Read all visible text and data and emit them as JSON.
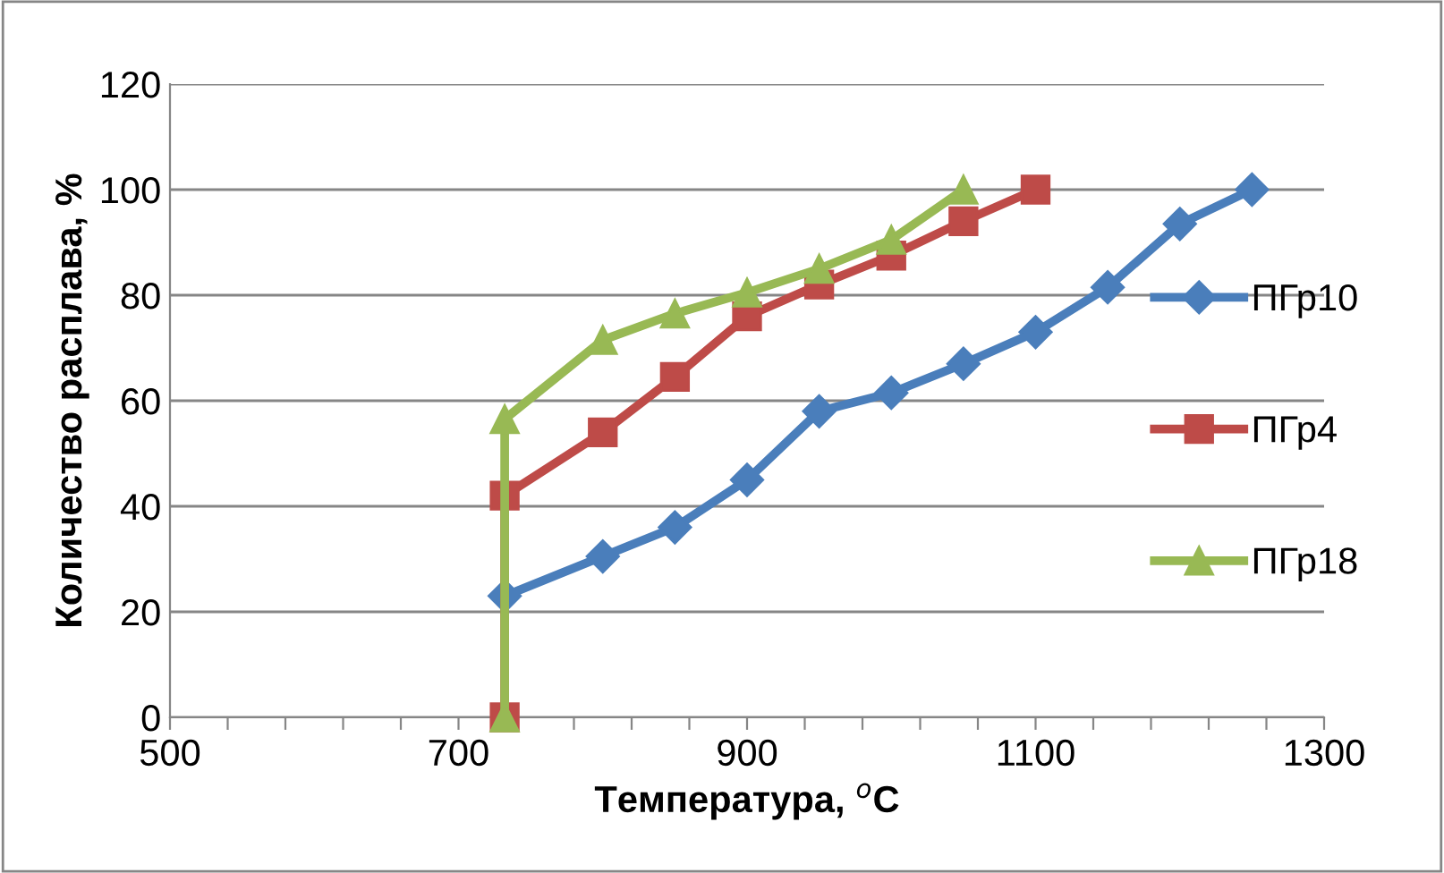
{
  "chart_data": {
    "type": "line",
    "xlabel": "Температура, $^{o}$C",
    "ylabel": "Количество расплава, %",
    "xlim": [
      500,
      1300
    ],
    "ylim": [
      0,
      120
    ],
    "xticks": [
      500,
      {
        "value": 540,
        "label": null
      },
      {
        "value": 580,
        "label": null
      },
      {
        "value": 620,
        "label": null
      },
      {
        "value": 660,
        "label": null
      },
      700,
      {
        "value": 740,
        "label": null
      },
      {
        "value": 780,
        "label": null
      },
      {
        "value": 820,
        "label": null
      },
      {
        "value": 860,
        "label": null
      },
      900,
      {
        "value": 940,
        "label": null
      },
      {
        "value": 980,
        "label": null
      },
      {
        "value": 1020,
        "label": null
      },
      {
        "value": 1060,
        "label": null
      },
      1100,
      {
        "value": 1140,
        "label": null
      },
      {
        "value": 1180,
        "label": null
      },
      {
        "value": 1220,
        "label": null
      },
      {
        "value": 1260,
        "label": null
      },
      1300
    ],
    "yticks": [
      0,
      20,
      40,
      60,
      80,
      100,
      120
    ],
    "grid": "y",
    "legend": "right",
    "series": [
      {
        "name": "ПГр10",
        "color": "#4a7ebb",
        "marker": "diamond",
        "x": [
          732,
          800,
          850,
          900,
          950,
          1000,
          1050,
          1100,
          1150,
          1200,
          1250
        ],
        "values": [
          23,
          30.5,
          36,
          45,
          58,
          61.5,
          67,
          73,
          81.5,
          93.5,
          100
        ]
      },
      {
        "name": "ПГр4",
        "color": "#be4b48",
        "marker": "square",
        "x": [
          732,
          732,
          800,
          850,
          900,
          950,
          1000,
          1050,
          1100
        ],
        "values": [
          0,
          42,
          54,
          64.5,
          76,
          82,
          87.5,
          94,
          100
        ]
      },
      {
        "name": "ПГр18",
        "color": "#98b954",
        "marker": "triangle",
        "x": [
          732,
          732,
          800,
          850,
          900,
          950,
          1000,
          1050
        ],
        "values": [
          0,
          56.5,
          71.5,
          76.5,
          80.5,
          85,
          90.5,
          100
        ]
      }
    ]
  }
}
